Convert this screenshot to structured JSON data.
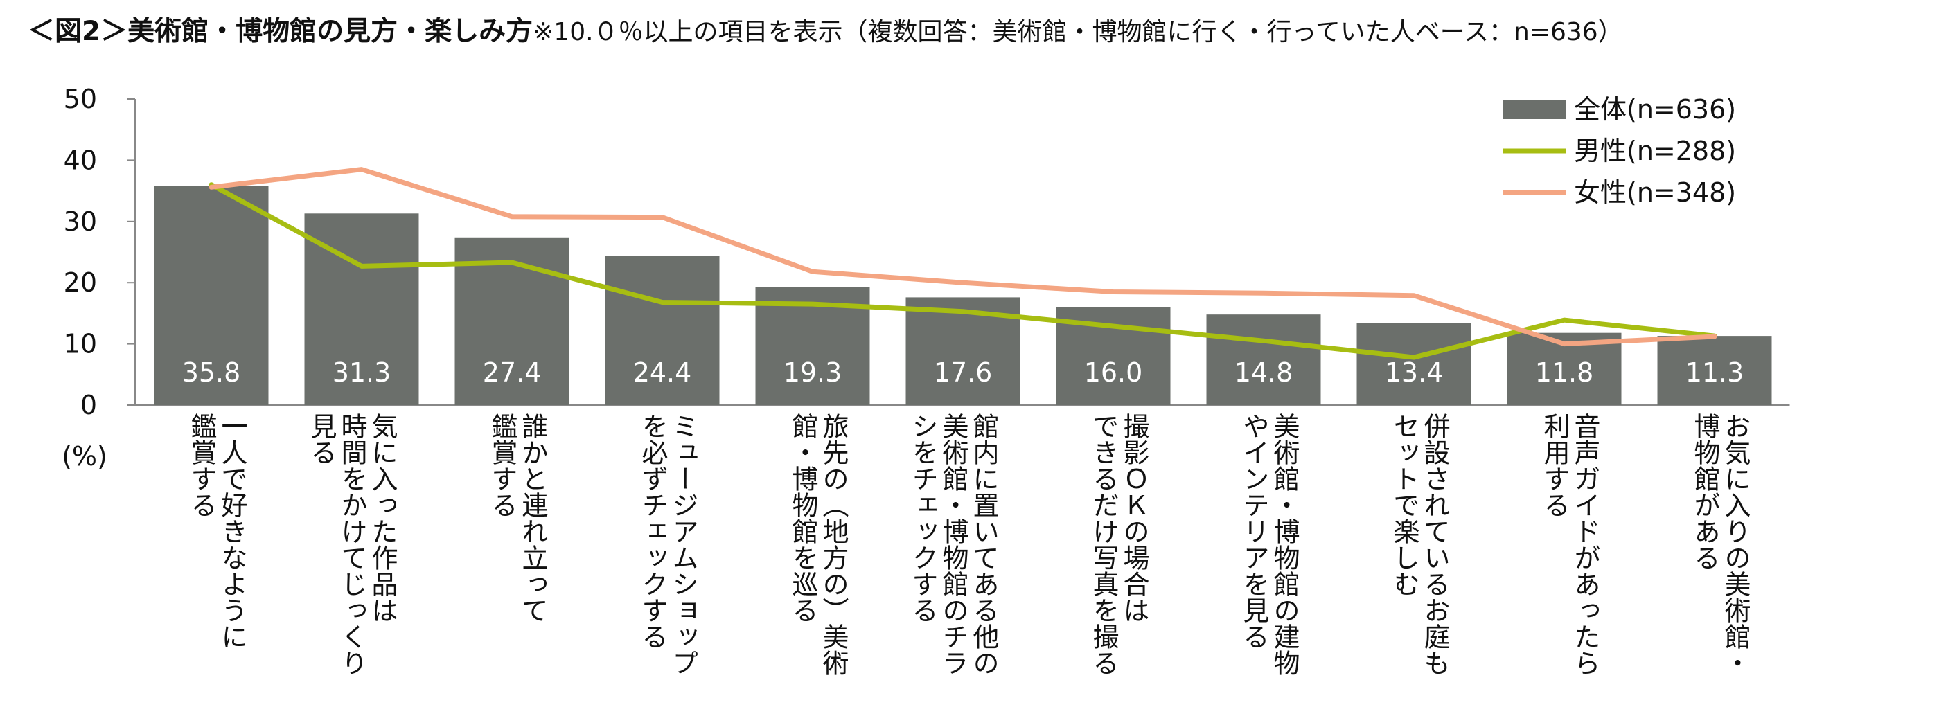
{
  "title": {
    "main": "＜図2＞美術館・博物館の見方・楽しみ方",
    "note": "※10.０％以上の項目を表示（複数回答：美術館・博物館に行く・行っていた人ベース：n=636）"
  },
  "chart_data": {
    "type": "bar",
    "ylabel": "(%)",
    "ylim": [
      0,
      50
    ],
    "yticks": [
      "0",
      "10",
      "20",
      "30",
      "40",
      "50"
    ],
    "categories": [
      [
        "一人で好きなように",
        "鑑賞する"
      ],
      [
        "気に入った作品は",
        "時間をかけてじっくり",
        "見る"
      ],
      [
        "誰かと連れ立って",
        "鑑賞する"
      ],
      [
        "ミュージアムショップ",
        "を必ずチェックする"
      ],
      [
        "旅先の（地方の）美術",
        "館・博物館を巡る"
      ],
      [
        "館内に置いてある他の",
        "美術館・博物館のチラ",
        "シをチェックする"
      ],
      [
        "撮影ＯＫの場合は",
        "できるだけ写真を撮る"
      ],
      [
        "美術館・博物館の建物",
        "やインテリアを見る"
      ],
      [
        "併設されているお庭も",
        "セットで楽しむ"
      ],
      [
        "音声ガイドがあったら",
        "利用する"
      ],
      [
        "お気に入りの美術館・",
        "博物館がある"
      ]
    ],
    "series": [
      {
        "name": "全体(n=636)",
        "kind": "bar",
        "color": "#6b6f6b",
        "values": [
          35.8,
          31.3,
          27.4,
          24.4,
          19.3,
          17.6,
          16.0,
          14.8,
          13.4,
          11.8,
          11.3
        ],
        "labels": [
          "35.8",
          "31.3",
          "27.4",
          "24.4",
          "19.3",
          "17.6",
          "16.0",
          "14.8",
          "13.4",
          "11.8",
          "11.3"
        ]
      },
      {
        "name": "男性(n=288)",
        "kind": "line",
        "color": "#a7bd12",
        "values": [
          36.0,
          22.7,
          23.3,
          16.8,
          16.5,
          15.3,
          12.9,
          10.5,
          7.8,
          13.9,
          11.3
        ]
      },
      {
        "name": "女性(n=348)",
        "kind": "line",
        "color": "#f4a582",
        "values": [
          35.6,
          38.5,
          30.8,
          30.7,
          21.8,
          20.0,
          18.5,
          18.3,
          17.9,
          10.0,
          11.2
        ]
      }
    ],
    "legend_position": "top-right",
    "grid": false
  }
}
